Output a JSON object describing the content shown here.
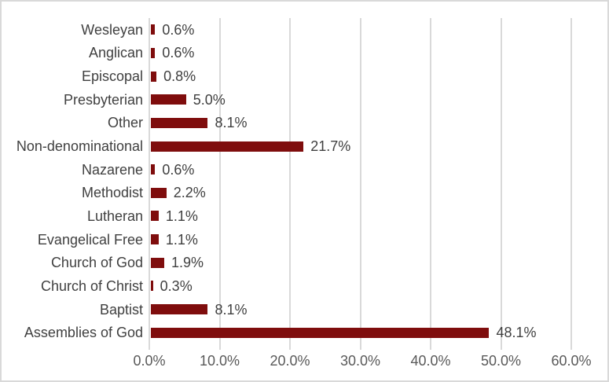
{
  "chart_data": {
    "type": "bar",
    "orientation": "horizontal",
    "title": "",
    "xlabel": "",
    "ylabel": "",
    "xlim": [
      0,
      60
    ],
    "grid": true,
    "legend": false,
    "x_tick_labels": [
      "0.0%",
      "10.0%",
      "20.0%",
      "30.0%",
      "40.0%",
      "50.0%",
      "60.0%"
    ],
    "categories": [
      "Wesleyan",
      "Anglican",
      "Episcopal",
      "Presbyterian",
      "Other",
      "Non-denominational",
      "Nazarene",
      "Methodist",
      "Lutheran",
      "Evangelical Free",
      "Church of God",
      "Church of Christ",
      "Baptist",
      "Assemblies of God"
    ],
    "category_order": "top-to-bottom",
    "values": [
      0.6,
      0.6,
      0.8,
      5.0,
      8.1,
      21.7,
      0.6,
      2.2,
      1.1,
      1.1,
      1.9,
      0.3,
      8.1,
      48.1
    ],
    "value_labels": [
      "0.6%",
      "0.6%",
      "0.8%",
      "5.0%",
      "8.1%",
      "21.7%",
      "0.6%",
      "2.2%",
      "1.1%",
      "1.1%",
      "1.9%",
      "0.3%",
      "8.1%",
      "48.1%"
    ],
    "colors": {
      "bar": "#7F0D0D",
      "gridline": "#D9D9D9",
      "tick": "#D9D9D9",
      "border": "#D9D9D9",
      "category_label": "#404040",
      "value_label": "#404040",
      "axis_tick_label": "#595959",
      "background": "#FFFFFF"
    }
  }
}
